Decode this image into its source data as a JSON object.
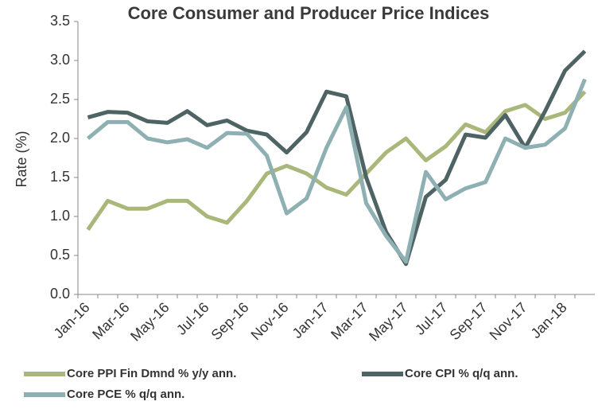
{
  "chart_data": {
    "type": "line",
    "title": "Core Consumer and Producer Price Indices",
    "ylabel": "Rate (%)",
    "categories": [
      "Jan-16",
      null,
      "Mar-16",
      null,
      "May-16",
      null,
      "Jul-16",
      null,
      "Sep-16",
      null,
      "Nov-16",
      null,
      "Jan-17",
      null,
      "Mar-17",
      null,
      "May-17",
      null,
      "Jul-17",
      null,
      "Sep-17",
      null,
      "Nov-17",
      null,
      "Jan-18",
      null
    ],
    "series": [
      {
        "name": "Core PPI Fin Dmnd % y/y ann.",
        "color": "#a9b87a",
        "values": [
          0.83,
          1.2,
          1.1,
          1.1,
          1.2,
          1.2,
          1.0,
          0.92,
          1.2,
          1.55,
          1.65,
          1.55,
          1.37,
          1.28,
          1.55,
          1.82,
          2.0,
          1.72,
          1.9,
          2.18,
          2.08,
          2.35,
          2.43,
          2.25,
          2.33,
          2.6
        ]
      },
      {
        "name": "Core CPI % q/q ann.",
        "color": "#4e6363",
        "values": [
          2.27,
          2.34,
          2.33,
          2.22,
          2.2,
          2.35,
          2.17,
          2.23,
          2.1,
          2.05,
          1.82,
          2.08,
          2.6,
          2.54,
          1.5,
          0.8,
          0.39,
          1.25,
          1.47,
          2.05,
          2.01,
          2.3,
          1.88,
          2.35,
          2.87,
          3.12
        ]
      },
      {
        "name": "Core PCE % q/q ann.",
        "color": "#8fb0b3",
        "values": [
          2.0,
          2.21,
          2.21,
          2.0,
          1.95,
          1.99,
          1.88,
          2.07,
          2.06,
          1.78,
          1.04,
          1.23,
          1.88,
          2.4,
          1.17,
          0.75,
          0.42,
          1.57,
          1.22,
          1.36,
          1.44,
          2.0,
          1.88,
          1.92,
          2.13,
          2.76
        ]
      }
    ],
    "ylim": [
      0,
      3.5
    ],
    "yticks": [
      {
        "value": 0,
        "label": "0.0"
      },
      {
        "value": 0.5,
        "label": "0.5"
      },
      {
        "value": 1,
        "label": "1.0"
      },
      {
        "value": 1.5,
        "label": "1.5"
      },
      {
        "value": 2,
        "label": "2.0"
      },
      {
        "value": 2.5,
        "label": "2.5"
      },
      {
        "value": 3,
        "label": "3.0"
      },
      {
        "value": 3.5,
        "label": "3.5"
      }
    ]
  }
}
